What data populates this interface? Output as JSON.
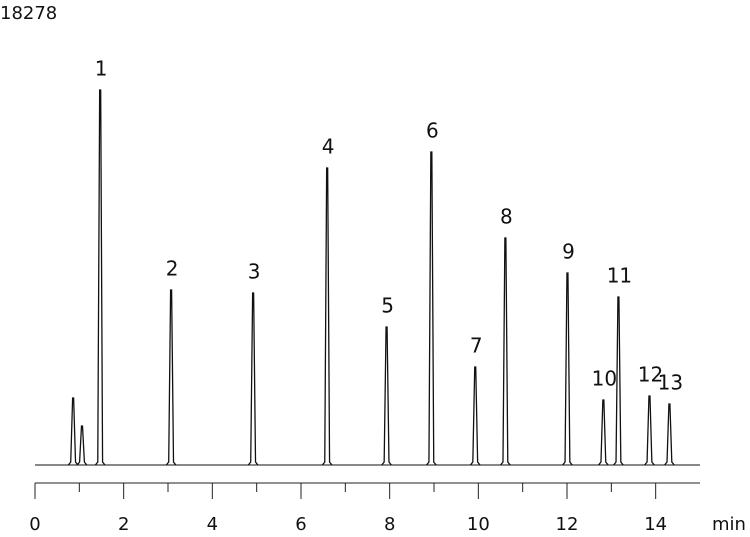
{
  "chart_data": {
    "type": "chromatogram",
    "title": "18278",
    "x_label": "min",
    "x": [
      0.86,
      1.06,
      1.47,
      3.07,
      4.92,
      6.59,
      7.93,
      8.94,
      9.93,
      10.61,
      12.01,
      12.82,
      13.16,
      13.86,
      14.31
    ],
    "values": [
      67,
      39,
      375,
      175,
      172,
      297,
      138,
      313,
      98,
      227,
      192,
      65,
      168,
      69,
      61
    ],
    "peak_labels": [
      null,
      null,
      "1",
      "2",
      "3",
      "4",
      "5",
      "6",
      "7",
      "8",
      "9",
      "10",
      "11",
      "12",
      "13"
    ],
    "xlim": [
      0,
      15
    ],
    "xticks": [
      0,
      2,
      4,
      6,
      8,
      10,
      12,
      14
    ],
    "xminor_ticks": [
      1,
      3,
      5,
      7,
      9,
      11,
      13
    ],
    "ylim": [
      0,
      400
    ],
    "color": "#111111"
  }
}
